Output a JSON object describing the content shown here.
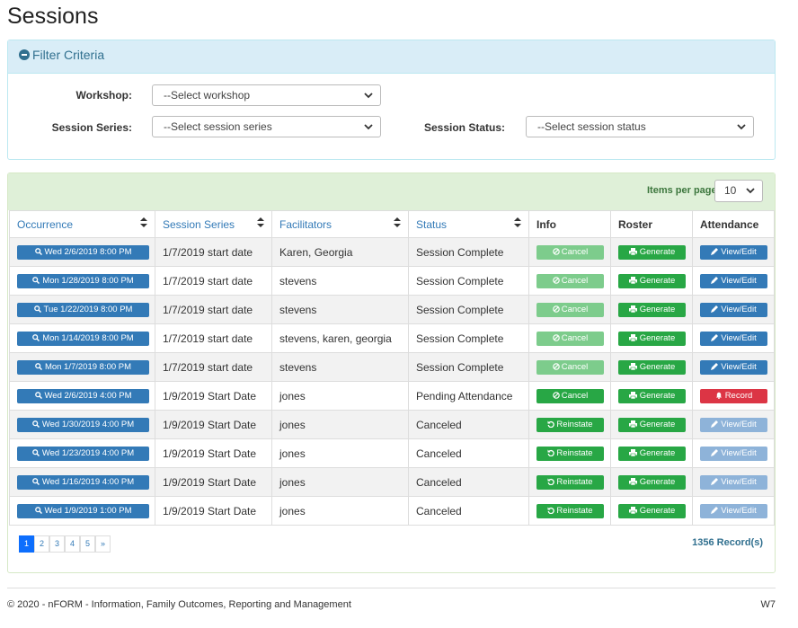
{
  "header": {
    "title": "Sessions"
  },
  "filter": {
    "title": "Filter Criteria",
    "fields": [
      {
        "label": "Workshop:",
        "placeholder": "--Select workshop"
      },
      {
        "label": "Session Series:",
        "placeholder": "--Select session series"
      },
      {
        "label": "Session Status:",
        "placeholder": "--Select session status"
      }
    ]
  },
  "results": {
    "items_per_page_label": "Items per page",
    "items_per_page": 10,
    "columns": [
      "Occurrence",
      "Session Series",
      "Facilitators",
      "Status",
      "Info",
      "Roster",
      "Attendance"
    ],
    "rows": [
      [
        "Wed 2/6/2019 8:00 PM",
        "1/7/2019 start date",
        "Karen, Georgia",
        "Session Complete",
        "Cancel",
        "Generate",
        "View/Edit"
      ],
      [
        "Mon 1/28/2019 8:00 PM",
        "1/7/2019 start date",
        "stevens",
        "Session Complete",
        "Cancel",
        "Generate",
        "View/Edit"
      ],
      [
        "Tue 1/22/2019 8:00 PM",
        "1/7/2019 start date",
        "stevens",
        "Session Complete",
        "Cancel",
        "Generate",
        "View/Edit"
      ],
      [
        "Mon 1/14/2019 8:00 PM",
        "1/7/2019 start date",
        "stevens, karen, georgia",
        "Session Complete",
        "Cancel",
        "Generate",
        "View/Edit"
      ],
      [
        "Mon 1/7/2019 8:00 PM",
        "1/7/2019 start date",
        "stevens",
        "Session Complete",
        "Cancel",
        "Generate",
        "View/Edit"
      ],
      [
        "Wed 2/6/2019 4:00 PM",
        "1/9/2019 Start Date",
        "jones",
        "Pending Attendance",
        "Cancel",
        "Generate",
        "Record"
      ],
      [
        "Wed 1/30/2019 4:00 PM",
        "1/9/2019 Start Date",
        "jones",
        "Canceled",
        "Reinstate",
        "Generate",
        "View/Edit"
      ],
      [
        "Wed 1/23/2019 4:00 PM",
        "1/9/2019 Start Date",
        "jones",
        "Canceled",
        "Reinstate",
        "Generate",
        "View/Edit"
      ],
      [
        "Wed 1/16/2019 4:00 PM",
        "1/9/2019 Start Date",
        "jones",
        "Canceled",
        "Reinstate",
        "Generate",
        "View/Edit"
      ],
      [
        "Wed 1/9/2019 1:00 PM",
        "1/9/2019 Start Date",
        "jones",
        "Canceled",
        "Reinstate",
        "Generate",
        "View/Edit"
      ]
    ],
    "pagination": [
      "1",
      "2",
      "3",
      "4",
      "5",
      "»"
    ],
    "record_count": "1356 Record(s)"
  },
  "footer": {
    "copyright": "© 2020 - nFORM - Information, Family Outcomes, Reporting and Management",
    "version": "W7"
  }
}
